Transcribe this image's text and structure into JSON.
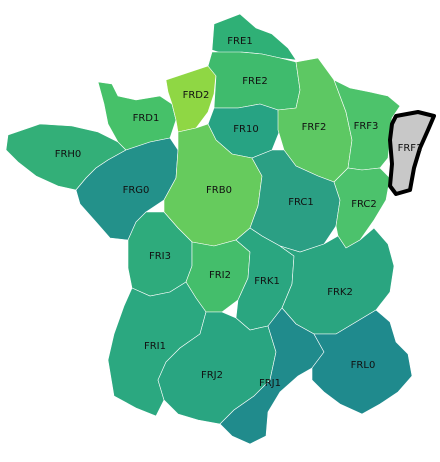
{
  "map": {
    "regions": [
      {
        "code": "FRE1",
        "label": "FRE1",
        "color": "#2fb076"
      },
      {
        "code": "FRE2",
        "label": "FRE2",
        "color": "#3fbb6d"
      },
      {
        "code": "FRD2",
        "label": "FRD2",
        "color": "#8fd744"
      },
      {
        "code": "FRD1",
        "label": "FRD1",
        "color": "#46c169"
      },
      {
        "code": "FR10",
        "label": "FR10",
        "color": "#27a383"
      },
      {
        "code": "FRF2",
        "label": "FRF2",
        "color": "#5dc863"
      },
      {
        "code": "FRF3",
        "label": "FRF3",
        "color": "#4dc36b"
      },
      {
        "code": "FRF1",
        "label": "FRF1",
        "color": "#c8c8c8"
      },
      {
        "code": "FRH0",
        "label": "FRH0",
        "color": "#33af78"
      },
      {
        "code": "FRG0",
        "label": "FRG0",
        "color": "#23918a"
      },
      {
        "code": "FRB0",
        "label": "FRB0",
        "color": "#66cb5d"
      },
      {
        "code": "FRC1",
        "label": "FRC1",
        "color": "#2b9f84"
      },
      {
        "code": "FRC2",
        "label": "FRC2",
        "color": "#4cc26c"
      },
      {
        "code": "FRI3",
        "label": "FRI3",
        "color": "#2eab7c"
      },
      {
        "code": "FRI2",
        "label": "FRI2",
        "color": "#44be6b"
      },
      {
        "code": "FRK1",
        "label": "FRK1",
        "color": "#2aa680"
      },
      {
        "code": "FRK2",
        "label": "FRK2",
        "color": "#2aa580"
      },
      {
        "code": "FRI1",
        "label": "FRI1",
        "color": "#2ba880"
      },
      {
        "code": "FRJ2",
        "label": "FRJ2",
        "color": "#29a581"
      },
      {
        "code": "FRJ1",
        "label": "FRJ1",
        "color": "#208b8c"
      },
      {
        "code": "FRL0",
        "label": "FRL0",
        "color": "#1f8a8d"
      }
    ],
    "highlighted_region": "FRF1"
  }
}
